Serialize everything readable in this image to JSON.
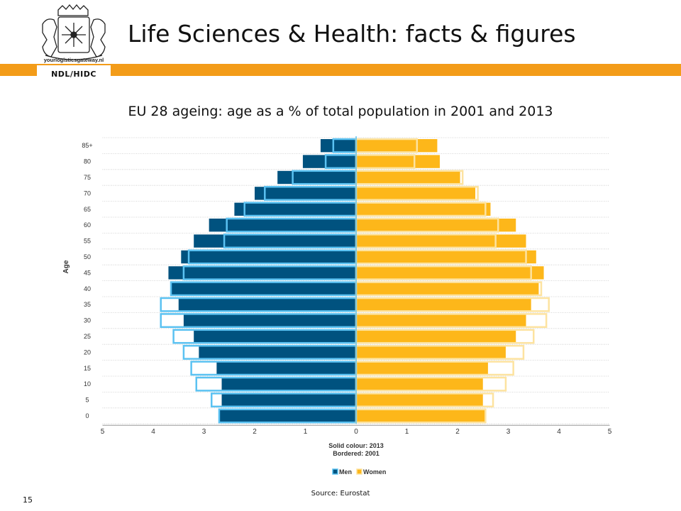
{
  "slide": {
    "title": "Life Sciences & Health: facts & figures",
    "logo_url": "yourlogisticsgateway.nl",
    "logo_tag": "NDL/HIDC",
    "source": "Source: Eurostat",
    "page_number": "15"
  },
  "colors": {
    "accent_orange": "#f39c19",
    "men_2013": "#00527f",
    "men_2001_border": "#5bc2f2",
    "women_2013": "#fdb71a",
    "women_2001_border": "#fde3a0"
  },
  "chart_data": {
    "type": "bar",
    "orientation": "horizontal-population-pyramid",
    "title": "EU 28 ageing: age as a % of total population in 2001 and 2013",
    "ylabel": "Age",
    "xlabel": "",
    "xlim": [
      -5,
      5
    ],
    "x_ticks": [
      "5",
      "4",
      "3",
      "2",
      "1",
      "0",
      "1",
      "2",
      "3",
      "4",
      "5"
    ],
    "categories": [
      "0",
      "5",
      "10",
      "15",
      "20",
      "25",
      "30",
      "35",
      "40",
      "45",
      "50",
      "55",
      "60",
      "65",
      "70",
      "75",
      "80",
      "85+"
    ],
    "grid": true,
    "legend_position": "bottom",
    "legend_note_line1": "Solid colour: 2013",
    "legend_note_line2": "Bordered: 2001",
    "series": [
      {
        "name": "Men",
        "values_2013": [
          2.7,
          2.65,
          2.65,
          2.75,
          3.1,
          3.2,
          3.4,
          3.5,
          3.65,
          3.7,
          3.45,
          3.2,
          2.9,
          2.4,
          2.0,
          1.55,
          1.05,
          0.7
        ],
        "values_2001": [
          2.7,
          2.85,
          3.15,
          3.25,
          3.4,
          3.6,
          3.85,
          3.85,
          3.65,
          3.4,
          3.3,
          2.6,
          2.55,
          2.2,
          1.8,
          1.25,
          0.6,
          0.45
        ]
      },
      {
        "name": "Women",
        "values_2013": [
          2.55,
          2.5,
          2.5,
          2.6,
          2.95,
          3.15,
          3.35,
          3.45,
          3.6,
          3.7,
          3.55,
          3.35,
          3.15,
          2.65,
          2.35,
          2.05,
          1.65,
          1.6
        ],
        "values_2001": [
          2.55,
          2.7,
          2.95,
          3.1,
          3.3,
          3.5,
          3.75,
          3.8,
          3.65,
          3.45,
          3.35,
          2.75,
          2.8,
          2.55,
          2.4,
          2.1,
          1.15,
          1.2
        ]
      }
    ]
  }
}
